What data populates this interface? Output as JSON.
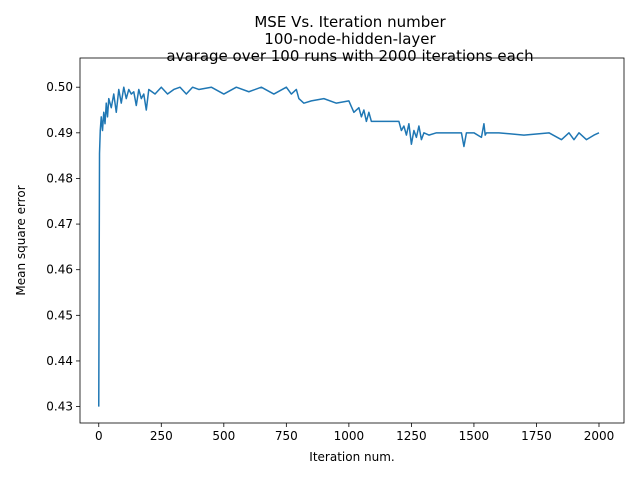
{
  "chart_data": {
    "type": "line",
    "title": [
      "MSE Vs. Iteration number",
      "100-node-hidden-layer",
      "avarage over 100 runs with 2000 iterations each"
    ],
    "xlabel": "Iteration num.",
    "ylabel": "Mean square error",
    "xlim": [
      -75,
      2100
    ],
    "ylim": [
      0.4264,
      0.5064
    ],
    "xticks": [
      0,
      250,
      500,
      750,
      1000,
      1250,
      1500,
      1750,
      2000
    ],
    "yticks": [
      0.43,
      0.44,
      0.45,
      0.46,
      0.47,
      0.48,
      0.49,
      0.5
    ],
    "grid": false,
    "legend": "none",
    "color": "#1f77b4",
    "series": [
      {
        "x": [
          0,
          3,
          6,
          10,
          15,
          20,
          25,
          30,
          35,
          40,
          50,
          60,
          70,
          80,
          90,
          100,
          110,
          120,
          130,
          140,
          150,
          160,
          170,
          180,
          190,
          200,
          225,
          250,
          275,
          300,
          325,
          350,
          375,
          400,
          450,
          500,
          550,
          600,
          650,
          700,
          750,
          770,
          790,
          800,
          820,
          850,
          900,
          950,
          1000,
          1020,
          1040,
          1050,
          1060,
          1070,
          1080,
          1090,
          1100,
          1150,
          1200,
          1210,
          1220,
          1230,
          1240,
          1250,
          1260,
          1270,
          1280,
          1290,
          1300,
          1320,
          1350,
          1400,
          1450,
          1460,
          1470,
          1500,
          1530,
          1540,
          1545,
          1550,
          1600,
          1700,
          1800,
          1850,
          1880,
          1900,
          1920,
          1950,
          1980,
          2000
        ],
        "y": [
          0.43,
          0.4855,
          0.4905,
          0.4935,
          0.4905,
          0.4945,
          0.492,
          0.4965,
          0.4935,
          0.4975,
          0.4955,
          0.4985,
          0.4945,
          0.4995,
          0.4965,
          0.5,
          0.4975,
          0.4995,
          0.4985,
          0.499,
          0.496,
          0.4995,
          0.4975,
          0.4985,
          0.495,
          0.4995,
          0.4985,
          0.5,
          0.4985,
          0.4995,
          0.5,
          0.4985,
          0.5,
          0.4995,
          0.5,
          0.4985,
          0.5,
          0.499,
          0.5,
          0.4985,
          0.5,
          0.4985,
          0.4995,
          0.4975,
          0.4965,
          0.497,
          0.4975,
          0.4965,
          0.497,
          0.4945,
          0.4955,
          0.4935,
          0.495,
          0.4925,
          0.4945,
          0.4925,
          0.4925,
          0.4925,
          0.4925,
          0.4905,
          0.4915,
          0.4895,
          0.492,
          0.4875,
          0.4905,
          0.489,
          0.4915,
          0.4885,
          0.49,
          0.4895,
          0.49,
          0.49,
          0.49,
          0.487,
          0.49,
          0.49,
          0.489,
          0.492,
          0.4895,
          0.49,
          0.49,
          0.4895,
          0.49,
          0.4885,
          0.49,
          0.4885,
          0.49,
          0.4885,
          0.4895,
          0.49
        ]
      }
    ]
  }
}
